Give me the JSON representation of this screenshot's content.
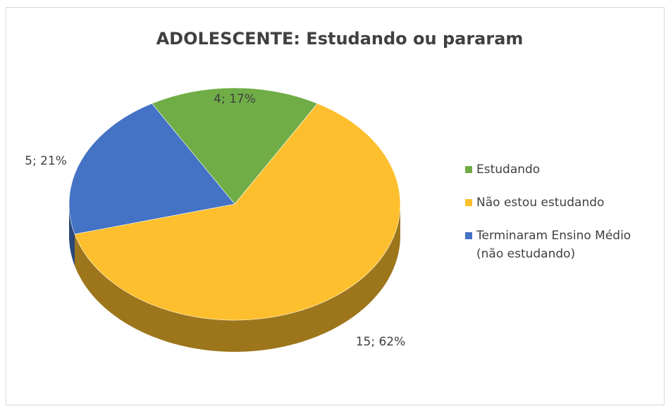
{
  "chart_data": {
    "type": "pie",
    "title": "ADOLESCENTE: Estudando ou pararam",
    "categories": [
      "Estudando",
      "Não estou estudando",
      "Terminaram Ensino Médio (não estudando)"
    ],
    "values": [
      4,
      15,
      5
    ],
    "value_labels": [
      "4; 17%",
      "15; 62%",
      "5; 21%"
    ],
    "colors": [
      "#70ad47",
      "#fdbf2d",
      "#4472c4"
    ],
    "legend": "right"
  }
}
